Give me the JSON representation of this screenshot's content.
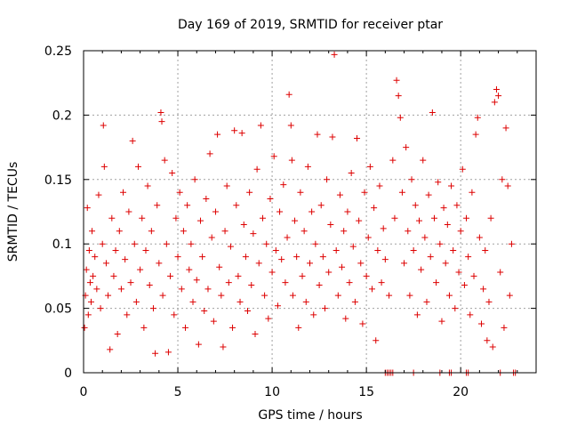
{
  "chart_data": {
    "type": "scatter",
    "title": "Day 169 of 2019, SRMTID for receiver ptar",
    "xlabel": "GPS time / hours",
    "ylabel": "SRMTID / TECUs",
    "xlim": [
      0,
      24
    ],
    "ylim": [
      0,
      0.25
    ],
    "xticks": [
      0,
      5,
      10,
      15,
      20
    ],
    "xtick_labels": [
      "0",
      "5",
      "10",
      "15",
      "20"
    ],
    "yticks": [
      0,
      0.05,
      0.1,
      0.15,
      0.2,
      0.25
    ],
    "ytick_labels": [
      "0",
      "0.05",
      "0.1",
      "0.15",
      "0.2",
      "0.25"
    ],
    "grid": true,
    "marker": "+",
    "marker_color": "#dd0000",
    "series": [
      {
        "name": "ptar",
        "points": [
          [
            0.05,
            0.035
          ],
          [
            0.1,
            0.06
          ],
          [
            0.15,
            0.08
          ],
          [
            0.2,
            0.128
          ],
          [
            0.25,
            0.045
          ],
          [
            0.3,
            0.095
          ],
          [
            0.35,
            0.07
          ],
          [
            0.4,
            0.055
          ],
          [
            0.45,
            0.11
          ],
          [
            0.5,
            0.075
          ],
          [
            0.6,
            0.09
          ],
          [
            0.7,
            0.065
          ],
          [
            0.8,
            0.138
          ],
          [
            0.9,
            0.05
          ],
          [
            1.0,
            0.1
          ],
          [
            1.05,
            0.192
          ],
          [
            1.1,
            0.16
          ],
          [
            1.2,
            0.085
          ],
          [
            1.3,
            0.06
          ],
          [
            1.4,
            0.018
          ],
          [
            1.5,
            0.12
          ],
          [
            1.6,
            0.075
          ],
          [
            1.7,
            0.095
          ],
          [
            1.8,
            0.03
          ],
          [
            1.9,
            0.11
          ],
          [
            2.0,
            0.065
          ],
          [
            2.1,
            0.14
          ],
          [
            2.2,
            0.088
          ],
          [
            2.3,
            0.045
          ],
          [
            2.4,
            0.125
          ],
          [
            2.5,
            0.07
          ],
          [
            2.6,
            0.18
          ],
          [
            2.7,
            0.1
          ],
          [
            2.8,
            0.055
          ],
          [
            2.9,
            0.16
          ],
          [
            3.0,
            0.08
          ],
          [
            3.1,
            0.12
          ],
          [
            3.2,
            0.035
          ],
          [
            3.3,
            0.095
          ],
          [
            3.4,
            0.145
          ],
          [
            3.5,
            0.068
          ],
          [
            3.6,
            0.11
          ],
          [
            3.7,
            0.05
          ],
          [
            3.8,
            0.015
          ],
          [
            3.9,
            0.13
          ],
          [
            4.0,
            0.085
          ],
          [
            4.1,
            0.202
          ],
          [
            4.15,
            0.195
          ],
          [
            4.2,
            0.06
          ],
          [
            4.3,
            0.165
          ],
          [
            4.4,
            0.1
          ],
          [
            4.5,
            0.016
          ],
          [
            4.6,
            0.075
          ],
          [
            4.7,
            0.155
          ],
          [
            4.8,
            0.045
          ],
          [
            4.9,
            0.12
          ],
          [
            5.0,
            0.09
          ],
          [
            5.1,
            0.14
          ],
          [
            5.2,
            0.065
          ],
          [
            5.3,
            0.11
          ],
          [
            5.4,
            0.035
          ],
          [
            5.5,
            0.13
          ],
          [
            5.6,
            0.08
          ],
          [
            5.7,
            0.1
          ],
          [
            5.8,
            0.055
          ],
          [
            5.9,
            0.15
          ],
          [
            6.0,
            0.072
          ],
          [
            6.1,
            0.022
          ],
          [
            6.2,
            0.118
          ],
          [
            6.3,
            0.09
          ],
          [
            6.4,
            0.048
          ],
          [
            6.5,
            0.135
          ],
          [
            6.6,
            0.065
          ],
          [
            6.7,
            0.17
          ],
          [
            6.8,
            0.105
          ],
          [
            6.9,
            0.04
          ],
          [
            7.0,
            0.125
          ],
          [
            7.1,
            0.185
          ],
          [
            7.2,
            0.082
          ],
          [
            7.3,
            0.06
          ],
          [
            7.4,
            0.02
          ],
          [
            7.5,
            0.11
          ],
          [
            7.6,
            0.145
          ],
          [
            7.7,
            0.07
          ],
          [
            7.8,
            0.098
          ],
          [
            7.9,
            0.035
          ],
          [
            8.0,
            0.188
          ],
          [
            8.1,
            0.13
          ],
          [
            8.2,
            0.075
          ],
          [
            8.3,
            0.055
          ],
          [
            8.4,
            0.186
          ],
          [
            8.5,
            0.115
          ],
          [
            8.6,
            0.09
          ],
          [
            8.7,
            0.048
          ],
          [
            8.8,
            0.14
          ],
          [
            8.9,
            0.068
          ],
          [
            9.0,
            0.108
          ],
          [
            9.1,
            0.03
          ],
          [
            9.2,
            0.158
          ],
          [
            9.3,
            0.085
          ],
          [
            9.4,
            0.192
          ],
          [
            9.5,
            0.12
          ],
          [
            9.6,
            0.06
          ],
          [
            9.7,
            0.1
          ],
          [
            9.8,
            0.042
          ],
          [
            9.9,
            0.135
          ],
          [
            10.0,
            0.078
          ],
          [
            10.1,
            0.168
          ],
          [
            10.2,
            0.095
          ],
          [
            10.3,
            0.052
          ],
          [
            10.4,
            0.125
          ],
          [
            10.5,
            0.088
          ],
          [
            10.6,
            0.146
          ],
          [
            10.7,
            0.07
          ],
          [
            10.8,
            0.105
          ],
          [
            10.9,
            0.216
          ],
          [
            11.0,
            0.192
          ],
          [
            11.05,
            0.165
          ],
          [
            11.1,
            0.06
          ],
          [
            11.2,
            0.118
          ],
          [
            11.3,
            0.09
          ],
          [
            11.4,
            0.035
          ],
          [
            11.5,
            0.14
          ],
          [
            11.6,
            0.075
          ],
          [
            11.7,
            0.11
          ],
          [
            11.8,
            0.055
          ],
          [
            11.9,
            0.16
          ],
          [
            12.0,
            0.085
          ],
          [
            12.1,
            0.125
          ],
          [
            12.2,
            0.045
          ],
          [
            12.3,
            0.1
          ],
          [
            12.4,
            0.185
          ],
          [
            12.5,
            0.068
          ],
          [
            12.6,
            0.13
          ],
          [
            12.7,
            0.09
          ],
          [
            12.8,
            0.05
          ],
          [
            12.9,
            0.15
          ],
          [
            13.0,
            0.078
          ],
          [
            13.1,
            0.115
          ],
          [
            13.2,
            0.183
          ],
          [
            13.3,
            0.247
          ],
          [
            13.4,
            0.095
          ],
          [
            13.5,
            0.06
          ],
          [
            13.6,
            0.138
          ],
          [
            13.7,
            0.082
          ],
          [
            13.8,
            0.11
          ],
          [
            13.9,
            0.042
          ],
          [
            14.0,
            0.125
          ],
          [
            14.1,
            0.07
          ],
          [
            14.2,
            0.155
          ],
          [
            14.3,
            0.098
          ],
          [
            14.4,
            0.055
          ],
          [
            14.5,
            0.182
          ],
          [
            14.6,
            0.118
          ],
          [
            14.7,
            0.085
          ],
          [
            14.8,
            0.038
          ],
          [
            14.9,
            0.14
          ],
          [
            15.0,
            0.075
          ],
          [
            15.1,
            0.105
          ],
          [
            15.2,
            0.16
          ],
          [
            15.3,
            0.065
          ],
          [
            15.4,
            0.128
          ],
          [
            15.5,
            0.025
          ],
          [
            15.6,
            0.095
          ],
          [
            15.7,
            0.145
          ],
          [
            15.8,
            0.07
          ],
          [
            15.9,
            0.112
          ],
          [
            16.0,
            0.088
          ],
          [
            16.2,
            0.06
          ],
          [
            16.4,
            0.165
          ],
          [
            16.5,
            0.12
          ],
          [
            16.6,
            0.227
          ],
          [
            16.7,
            0.215
          ],
          [
            16.8,
            0.198
          ],
          [
            16.9,
            0.14
          ],
          [
            17.0,
            0.085
          ],
          [
            17.1,
            0.175
          ],
          [
            17.2,
            0.11
          ],
          [
            17.3,
            0.06
          ],
          [
            17.4,
            0.15
          ],
          [
            17.5,
            0.095
          ],
          [
            17.6,
            0.13
          ],
          [
            17.7,
            0.045
          ],
          [
            17.8,
            0.118
          ],
          [
            17.9,
            0.08
          ],
          [
            18.0,
            0.165
          ],
          [
            18.1,
            0.105
          ],
          [
            18.2,
            0.055
          ],
          [
            18.3,
            0.138
          ],
          [
            18.4,
            0.09
          ],
          [
            18.5,
            0.202
          ],
          [
            18.6,
            0.12
          ],
          [
            18.7,
            0.07
          ],
          [
            18.8,
            0.148
          ],
          [
            18.9,
            0.1
          ],
          [
            19.0,
            0.04
          ],
          [
            19.1,
            0.128
          ],
          [
            19.2,
            0.085
          ],
          [
            19.3,
            0.115
          ],
          [
            19.4,
            0.06
          ],
          [
            19.5,
            0.145
          ],
          [
            19.6,
            0.095
          ],
          [
            19.7,
            0.05
          ],
          [
            19.8,
            0.13
          ],
          [
            19.9,
            0.078
          ],
          [
            20.0,
            0.11
          ],
          [
            20.1,
            0.158
          ],
          [
            20.2,
            0.068
          ],
          [
            20.3,
            0.12
          ],
          [
            20.4,
            0.09
          ],
          [
            20.5,
            0.045
          ],
          [
            20.6,
            0.14
          ],
          [
            20.7,
            0.075
          ],
          [
            20.8,
            0.185
          ],
          [
            20.9,
            0.198
          ],
          [
            21.0,
            0.105
          ],
          [
            21.1,
            0.038
          ],
          [
            21.2,
            0.065
          ],
          [
            21.3,
            0.095
          ],
          [
            21.4,
            0.025
          ],
          [
            21.5,
            0.055
          ],
          [
            21.6,
            0.12
          ],
          [
            21.7,
            0.02
          ],
          [
            21.8,
            0.21
          ],
          [
            21.9,
            0.22
          ],
          [
            22.0,
            0.215
          ],
          [
            22.1,
            0.078
          ],
          [
            22.2,
            0.15
          ],
          [
            22.3,
            0.035
          ],
          [
            22.4,
            0.19
          ],
          [
            22.5,
            0.145
          ],
          [
            22.6,
            0.06
          ],
          [
            22.7,
            0.1
          ],
          [
            16.0,
            0
          ],
          [
            16.1,
            0
          ],
          [
            16.2,
            0
          ],
          [
            16.3,
            0
          ],
          [
            16.4,
            0
          ],
          [
            17.5,
            0
          ],
          [
            18.9,
            0
          ],
          [
            19.4,
            0
          ],
          [
            19.5,
            0
          ],
          [
            20.3,
            0
          ],
          [
            20.4,
            0
          ],
          [
            22.1,
            0
          ],
          [
            22.8,
            0
          ],
          [
            22.9,
            0
          ]
        ]
      }
    ]
  }
}
